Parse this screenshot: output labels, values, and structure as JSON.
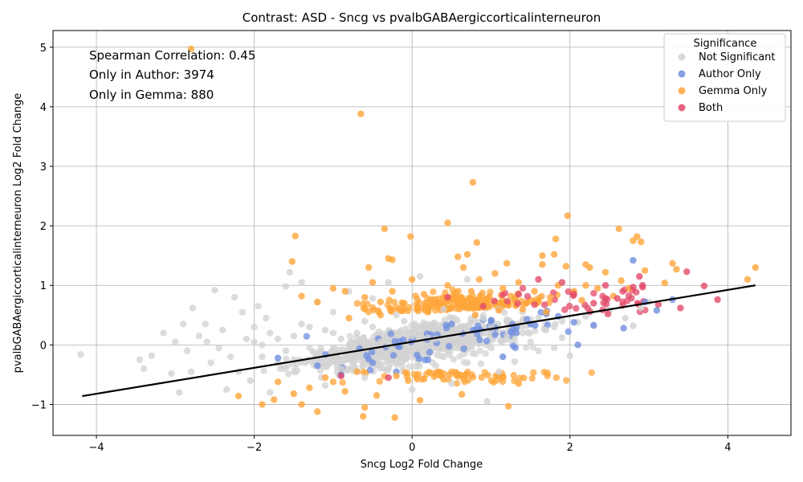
{
  "chart_data": {
    "type": "scatter",
    "title": "Contrast: ASD - Sncg vs pvalbGABAergiccorticalinterneuron",
    "xlabel": "Sncg Log2 Fold Change",
    "ylabel": "pvalbGABAergiccorticalinterneuron Log2 Fold Change",
    "xlim": [
      -4.55,
      4.8
    ],
    "ylim": [
      -1.52,
      5.28
    ],
    "xticks": [
      -4,
      -2,
      0,
      2,
      4
    ],
    "yticks": [
      -1,
      0,
      1,
      2,
      3,
      4,
      5
    ],
    "grid": true,
    "legend": {
      "title": "Significance",
      "placement": "top-right",
      "entries": [
        {
          "label": "Not Significant",
          "color": "#d3d3d3"
        },
        {
          "label": "Author Only",
          "color": "#6f8ee0"
        },
        {
          "label": "Gemma Only",
          "color": "#ffa53a"
        },
        {
          "label": "Both",
          "color": "#e34a6a"
        }
      ]
    },
    "annotations": [
      "Spearman Correlation: 0.45",
      "Only in Author: 3974",
      "Only in Gemma: 880"
    ],
    "regression_line": {
      "x": [
        -4.18,
        4.35
      ],
      "y": [
        -0.86,
        1.0
      ],
      "color": "#000000"
    },
    "series": [
      {
        "name": "Not Significant",
        "color": "#d3d3d3",
        "points": [
          [
            -4.2,
            -0.16
          ],
          [
            -3.45,
            -0.25
          ],
          [
            -3.4,
            -0.4
          ],
          [
            -3.3,
            -0.18
          ],
          [
            -3.15,
            0.2
          ],
          [
            -3.05,
            -0.48
          ],
          [
            -3.0,
            0.05
          ],
          [
            -2.95,
            -0.8
          ],
          [
            -2.9,
            0.35
          ],
          [
            -2.85,
            -0.1
          ],
          [
            -2.8,
            -0.45
          ],
          [
            -2.78,
            0.62
          ],
          [
            -2.7,
            0.15
          ],
          [
            -2.62,
            0.35
          ],
          [
            -2.55,
            -0.3
          ],
          [
            -2.5,
            0.92
          ],
          [
            -2.45,
            -0.05
          ],
          [
            -2.4,
            0.25
          ],
          [
            -2.35,
            -0.75
          ],
          [
            -2.25,
            0.8
          ],
          [
            -2.2,
            -0.45
          ],
          [
            -2.15,
            0.55
          ],
          [
            -2.1,
            0.1
          ],
          [
            -2.05,
            -0.6
          ],
          [
            -2.0,
            0.3
          ],
          [
            -1.95,
            0.65
          ],
          [
            -1.9,
            -0.2
          ],
          [
            -1.85,
            0.45
          ],
          [
            -1.8,
            -0.8
          ],
          [
            -1.7,
            0.1
          ],
          [
            -1.6,
            0.98
          ],
          [
            -1.55,
            1.22
          ],
          [
            -1.5,
            -0.25
          ],
          [
            -1.4,
            1.05
          ],
          [
            -1.3,
            0.3
          ],
          [
            -1.2,
            0.72
          ],
          [
            -1.1,
            -0.68
          ],
          [
            -1.0,
            0.55
          ],
          [
            -0.9,
            -0.4
          ],
          [
            -0.8,
            0.9
          ],
          [
            -0.7,
            0.2
          ],
          [
            -0.6,
            -0.55
          ],
          [
            -0.5,
            0.78
          ],
          [
            -0.4,
            0.05
          ],
          [
            -0.3,
            1.05
          ],
          [
            -0.2,
            -0.3
          ],
          [
            -0.1,
            0.4
          ],
          [
            0.0,
            -0.75
          ],
          [
            0.1,
            1.15
          ],
          [
            0.2,
            0.12
          ],
          [
            0.3,
            -0.35
          ],
          [
            0.4,
            0.6
          ],
          [
            0.5,
            -0.65
          ],
          [
            0.6,
            0.25
          ],
          [
            0.7,
            1.1
          ],
          [
            0.8,
            -0.15
          ],
          [
            0.9,
            0.45
          ],
          [
            0.95,
            -0.95
          ],
          [
            1.0,
            0.3
          ],
          [
            1.1,
            -0.45
          ],
          [
            1.2,
            0.15
          ],
          [
            1.3,
            -0.28
          ],
          [
            1.4,
            0.55
          ],
          [
            1.5,
            0.05
          ],
          [
            1.6,
            -0.1
          ],
          [
            1.7,
            0.25
          ],
          [
            1.8,
            -0.05
          ],
          [
            1.9,
            0.12
          ],
          [
            2.0,
            -0.18
          ],
          [
            2.1,
            0.38
          ],
          [
            2.2,
            0.48
          ],
          [
            2.3,
            0.32
          ],
          [
            2.5,
            0.58
          ],
          [
            2.7,
            0.45
          ],
          [
            2.8,
            0.32
          ],
          [
            2.9,
            0.62
          ],
          [
            3.0,
            0.72
          ],
          [
            -2.6,
            0.05
          ],
          [
            -2.3,
            -0.2
          ],
          [
            -2.0,
            0.05
          ],
          [
            -1.8,
            0.2
          ],
          [
            -1.6,
            -0.1
          ],
          [
            -1.4,
            0.35
          ],
          [
            -1.2,
            -0.15
          ],
          [
            -1.0,
            0.2
          ],
          [
            -0.8,
            -0.25
          ],
          [
            -0.6,
            0.4
          ],
          [
            -0.4,
            -0.1
          ],
          [
            -0.2,
            0.5
          ],
          [
            0.0,
            0.15
          ],
          [
            0.2,
            0.35
          ],
          [
            0.4,
            -0.2
          ],
          [
            0.6,
            0.05
          ],
          [
            0.8,
            0.5
          ],
          [
            1.0,
            -0.05
          ],
          [
            1.2,
            0.4
          ],
          [
            1.4,
            0.2
          ],
          [
            1.6,
            0.45
          ],
          [
            1.8,
            0.3
          ],
          [
            -1.9,
            0.0
          ],
          [
            -1.7,
            -0.3
          ],
          [
            -1.5,
            0.15
          ],
          [
            -1.3,
            -0.05
          ],
          [
            -1.1,
            0.25
          ],
          [
            -0.9,
            0.1
          ],
          [
            -0.7,
            -0.15
          ],
          [
            -0.5,
            0.3
          ],
          [
            -0.3,
            0.0
          ],
          [
            -0.1,
            -0.2
          ],
          [
            0.1,
            0.3
          ],
          [
            0.3,
            0.1
          ],
          [
            0.5,
            0.45
          ],
          [
            0.7,
            -0.3
          ],
          [
            0.9,
            0.2
          ],
          [
            1.1,
            0.6
          ],
          [
            1.3,
            0.1
          ],
          [
            1.5,
            0.35
          ],
          [
            1.7,
            0.55
          ],
          [
            1.9,
            0.4
          ]
        ]
      },
      {
        "name": "Author Only",
        "color": "#6f8ee0",
        "points": [
          [
            -1.7,
            -0.22
          ],
          [
            -1.2,
            -0.35
          ],
          [
            -0.9,
            -0.5
          ],
          [
            -0.5,
            -0.3
          ],
          [
            -0.2,
            -0.45
          ],
          [
            0.2,
            -0.25
          ],
          [
            0.5,
            0.35
          ],
          [
            0.8,
            0.25
          ],
          [
            1.0,
            0.4
          ],
          [
            1.15,
            -0.2
          ],
          [
            1.25,
            0.22
          ],
          [
            1.5,
            0.35
          ],
          [
            1.7,
            0.52
          ],
          [
            1.85,
            0.48
          ],
          [
            2.05,
            0.38
          ],
          [
            2.1,
            0.0
          ],
          [
            2.3,
            0.33
          ],
          [
            2.68,
            0.28
          ],
          [
            2.8,
            1.42
          ],
          [
            2.95,
            0.72
          ],
          [
            3.1,
            0.58
          ],
          [
            3.3,
            0.76
          ]
        ]
      },
      {
        "name": "Gemma Only",
        "color": "#ffa53a",
        "points": [
          [
            -2.8,
            4.97
          ],
          [
            -0.65,
            3.88
          ],
          [
            0.77,
            2.73
          ],
          [
            1.97,
            2.17
          ],
          [
            0.45,
            2.05
          ],
          [
            -0.35,
            1.95
          ],
          [
            -1.48,
            1.83
          ],
          [
            -0.02,
            1.82
          ],
          [
            0.82,
            1.72
          ],
          [
            1.82,
            1.78
          ],
          [
            2.62,
            1.95
          ],
          [
            2.85,
            1.82
          ],
          [
            2.8,
            1.75
          ],
          [
            2.9,
            1.73
          ],
          [
            -1.52,
            1.4
          ],
          [
            -0.55,
            1.3
          ],
          [
            -0.3,
            1.45
          ],
          [
            -0.25,
            1.43
          ],
          [
            0.58,
            1.48
          ],
          [
            0.7,
            1.52
          ],
          [
            1.2,
            1.37
          ],
          [
            1.65,
            1.5
          ],
          [
            1.8,
            1.52
          ],
          [
            2.2,
            1.35
          ],
          [
            3.3,
            1.37
          ],
          [
            3.35,
            1.27
          ],
          [
            2.95,
            1.25
          ],
          [
            4.35,
            1.3
          ],
          [
            4.25,
            1.1
          ],
          [
            3.2,
            1.04
          ],
          [
            -2.2,
            -0.86
          ],
          [
            -1.9,
            -1.0
          ],
          [
            -1.75,
            -0.92
          ],
          [
            -1.4,
            -1.0
          ],
          [
            -1.2,
            -1.12
          ],
          [
            -0.62,
            -1.2
          ],
          [
            -0.22,
            -1.22
          ],
          [
            -0.6,
            -1.05
          ],
          [
            0.1,
            -0.93
          ],
          [
            1.22,
            -1.03
          ],
          [
            1.35,
            -0.65
          ],
          [
            0.63,
            -0.83
          ],
          [
            -1.5,
            -0.82
          ],
          [
            -1.3,
            -0.72
          ],
          [
            -1.1,
            -0.55
          ],
          [
            -0.85,
            -0.78
          ],
          [
            -0.45,
            -0.85
          ],
          [
            -0.05,
            -0.6
          ],
          [
            0.3,
            -0.5
          ],
          [
            -1.7,
            -0.62
          ],
          [
            -1.0,
            -0.62
          ],
          [
            -0.7,
            -0.45
          ],
          [
            -0.2,
            -0.52
          ],
          [
            0.4,
            -0.58
          ],
          [
            -1.4,
            0.82
          ],
          [
            -1.2,
            0.72
          ],
          [
            -1.0,
            0.95
          ],
          [
            -0.85,
            0.9
          ],
          [
            -0.6,
            0.8
          ],
          [
            -0.5,
            1.05
          ],
          [
            -0.4,
            0.72
          ],
          [
            -0.25,
            0.9
          ],
          [
            -0.1,
            0.7
          ],
          [
            0.0,
            1.1
          ],
          [
            0.15,
            0.85
          ],
          [
            0.3,
            0.72
          ],
          [
            0.45,
            1.0
          ],
          [
            0.55,
            0.88
          ],
          [
            0.65,
            1.3
          ],
          [
            0.75,
            0.9
          ],
          [
            0.85,
            1.1
          ],
          [
            0.95,
            0.78
          ],
          [
            1.05,
            1.2
          ],
          [
            1.15,
            0.95
          ],
          [
            1.25,
            0.82
          ],
          [
            1.35,
            1.05
          ],
          [
            1.45,
            0.7
          ],
          [
            1.55,
            0.9
          ],
          [
            1.65,
            1.35
          ],
          [
            1.75,
            0.8
          ],
          [
            1.85,
            1.0
          ],
          [
            1.95,
            1.32
          ],
          [
            2.05,
            0.9
          ],
          [
            2.15,
            0.75
          ],
          [
            2.25,
            1.3
          ],
          [
            2.35,
            0.95
          ],
          [
            2.45,
            1.22
          ],
          [
            2.55,
            0.82
          ],
          [
            2.65,
            1.08
          ],
          [
            2.75,
            0.95
          ],
          [
            2.2,
            1.0
          ],
          [
            1.7,
            0.55
          ],
          [
            1.4,
            0.6
          ],
          [
            1.1,
            0.58
          ],
          [
            0.8,
            0.5
          ],
          [
            0.5,
            0.62
          ],
          [
            0.2,
            0.55
          ],
          [
            -0.1,
            0.6
          ],
          [
            -0.4,
            0.5
          ],
          [
            -0.8,
            0.45
          ]
        ]
      },
      {
        "name": "Both",
        "color": "#e34a6a",
        "points": [
          [
            -0.9,
            -0.52
          ],
          [
            -0.3,
            -0.55
          ],
          [
            0.45,
            0.8
          ],
          [
            0.9,
            0.65
          ],
          [
            1.35,
            0.85
          ],
          [
            1.6,
            1.1
          ],
          [
            1.9,
            1.05
          ],
          [
            2.05,
            0.85
          ],
          [
            2.3,
            0.7
          ],
          [
            2.45,
            1.0
          ],
          [
            2.45,
            0.78
          ],
          [
            2.6,
            0.78
          ],
          [
            2.8,
            0.97
          ],
          [
            2.88,
            1.15
          ],
          [
            2.92,
            1.0
          ],
          [
            2.92,
            0.97
          ],
          [
            3.12,
            0.68
          ],
          [
            3.4,
            0.62
          ],
          [
            3.48,
            1.23
          ],
          [
            3.7,
            0.99
          ],
          [
            3.87,
            0.76
          ],
          [
            2.48,
            0.52
          ]
        ]
      }
    ]
  }
}
